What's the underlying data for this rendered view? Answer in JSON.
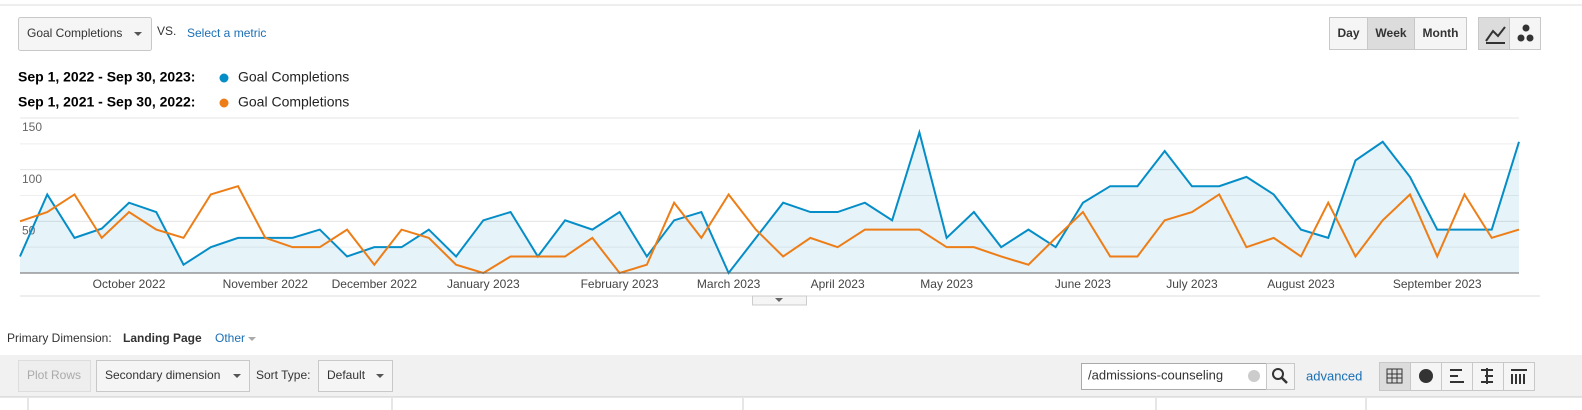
{
  "toolbar": {
    "metric": "Goal Completions",
    "vs": "VS.",
    "select_metric": "Select a metric",
    "periods": [
      "Day",
      "Week",
      "Month"
    ]
  },
  "chart_data": {
    "type": "line",
    "categories": [
      null,
      null,
      null,
      null,
      "October 2022",
      null,
      null,
      null,
      null,
      "November 2022",
      null,
      null,
      null,
      "December 2022",
      null,
      null,
      null,
      "January 2023",
      null,
      null,
      null,
      null,
      "February 2023",
      null,
      null,
      null,
      "March 2023",
      null,
      null,
      null,
      "April 2023",
      null,
      null,
      null,
      "May 2023",
      null,
      null,
      null,
      null,
      "June 2023",
      null,
      null,
      null,
      "July 2023",
      null,
      null,
      null,
      "August 2023",
      null,
      null,
      null,
      null,
      "September 2023",
      null,
      null,
      null
    ],
    "series": [
      {
        "period": "Sep 1, 2022 - Sep 30, 2023:",
        "name": "Goal Completions",
        "color": "#058dc7",
        "area": true,
        "values": [
          16,
          76,
          34,
          43,
          68,
          59,
          8,
          25,
          34,
          34,
          34,
          42,
          16,
          25,
          25,
          42,
          16,
          51,
          59,
          16,
          51,
          42,
          59,
          16,
          51,
          59,
          0,
          34,
          68,
          59,
          59,
          68,
          51,
          136,
          34,
          59,
          25,
          42,
          25,
          68,
          84,
          84,
          118,
          84,
          84,
          93,
          76,
          42,
          34,
          109,
          127,
          93,
          42,
          42,
          42,
          127
        ]
      },
      {
        "period": "Sep 1, 2021 - Sep 30, 2022:",
        "name": "Goal Completions",
        "color": "#ed7e17",
        "area": false,
        "values": [
          50,
          59,
          76,
          34,
          59,
          42,
          34,
          76,
          84,
          34,
          25,
          25,
          42,
          8,
          42,
          34,
          8,
          0,
          16,
          16,
          16,
          34,
          0,
          8,
          68,
          34,
          76,
          42,
          16,
          34,
          25,
          42,
          42,
          42,
          25,
          25,
          16,
          8,
          34,
          59,
          16,
          16,
          51,
          59,
          76,
          25,
          34,
          16,
          68,
          16,
          51,
          76,
          16,
          76,
          34,
          42
        ]
      }
    ],
    "ylim": [
      0,
      150
    ],
    "yticks": [
      50,
      100,
      150
    ],
    "grid": true
  },
  "dimension": {
    "label": "Primary Dimension:",
    "value": "Landing Page",
    "other": "Other"
  },
  "table_controls": {
    "plot_rows": "Plot Rows",
    "secondary": "Secondary dimension",
    "sort_label": "Sort Type:",
    "sort": "Default",
    "search": "/admissions-counseling",
    "advanced": "advanced"
  }
}
